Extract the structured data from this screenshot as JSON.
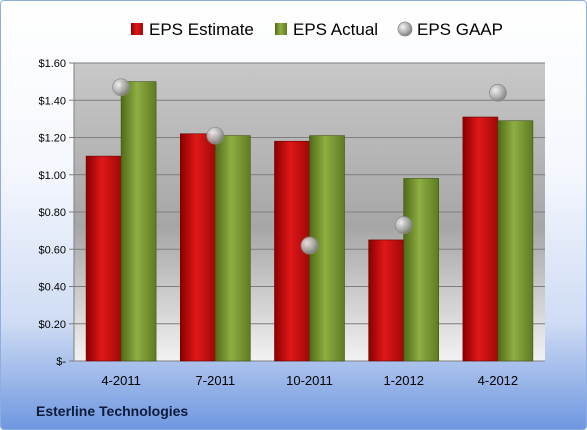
{
  "chart_data": {
    "type": "bar",
    "title": "",
    "xlabel": "",
    "ylabel": "",
    "categories": [
      "4-2011",
      "7-2011",
      "10-2011",
      "1-2012",
      "4-2012"
    ],
    "series": [
      {
        "name": "EPS Estimate",
        "kind": "bar",
        "color": "#cc1111",
        "values": [
          1.1,
          1.22,
          1.18,
          0.65,
          1.31
        ]
      },
      {
        "name": "EPS Actual",
        "kind": "bar",
        "color": "#7d9a32",
        "values": [
          1.5,
          1.21,
          1.21,
          0.98,
          1.29
        ]
      },
      {
        "name": "EPS GAAP",
        "kind": "marker",
        "color": "#b4b4b4",
        "values": [
          1.47,
          1.21,
          0.62,
          0.73,
          1.44
        ]
      }
    ],
    "ylim": [
      0,
      1.6
    ],
    "yticks": [
      0,
      0.2,
      0.4,
      0.6,
      0.8,
      1.0,
      1.2,
      1.4,
      1.6
    ],
    "ytick_labels": [
      "$-",
      "$0.20",
      "$0.40",
      "$0.60",
      "$0.80",
      "$1.00",
      "$1.20",
      "$1.40",
      "$1.60"
    ],
    "grid": true,
    "legend": "top"
  },
  "footer": {
    "company": "Esterline Technologies"
  }
}
